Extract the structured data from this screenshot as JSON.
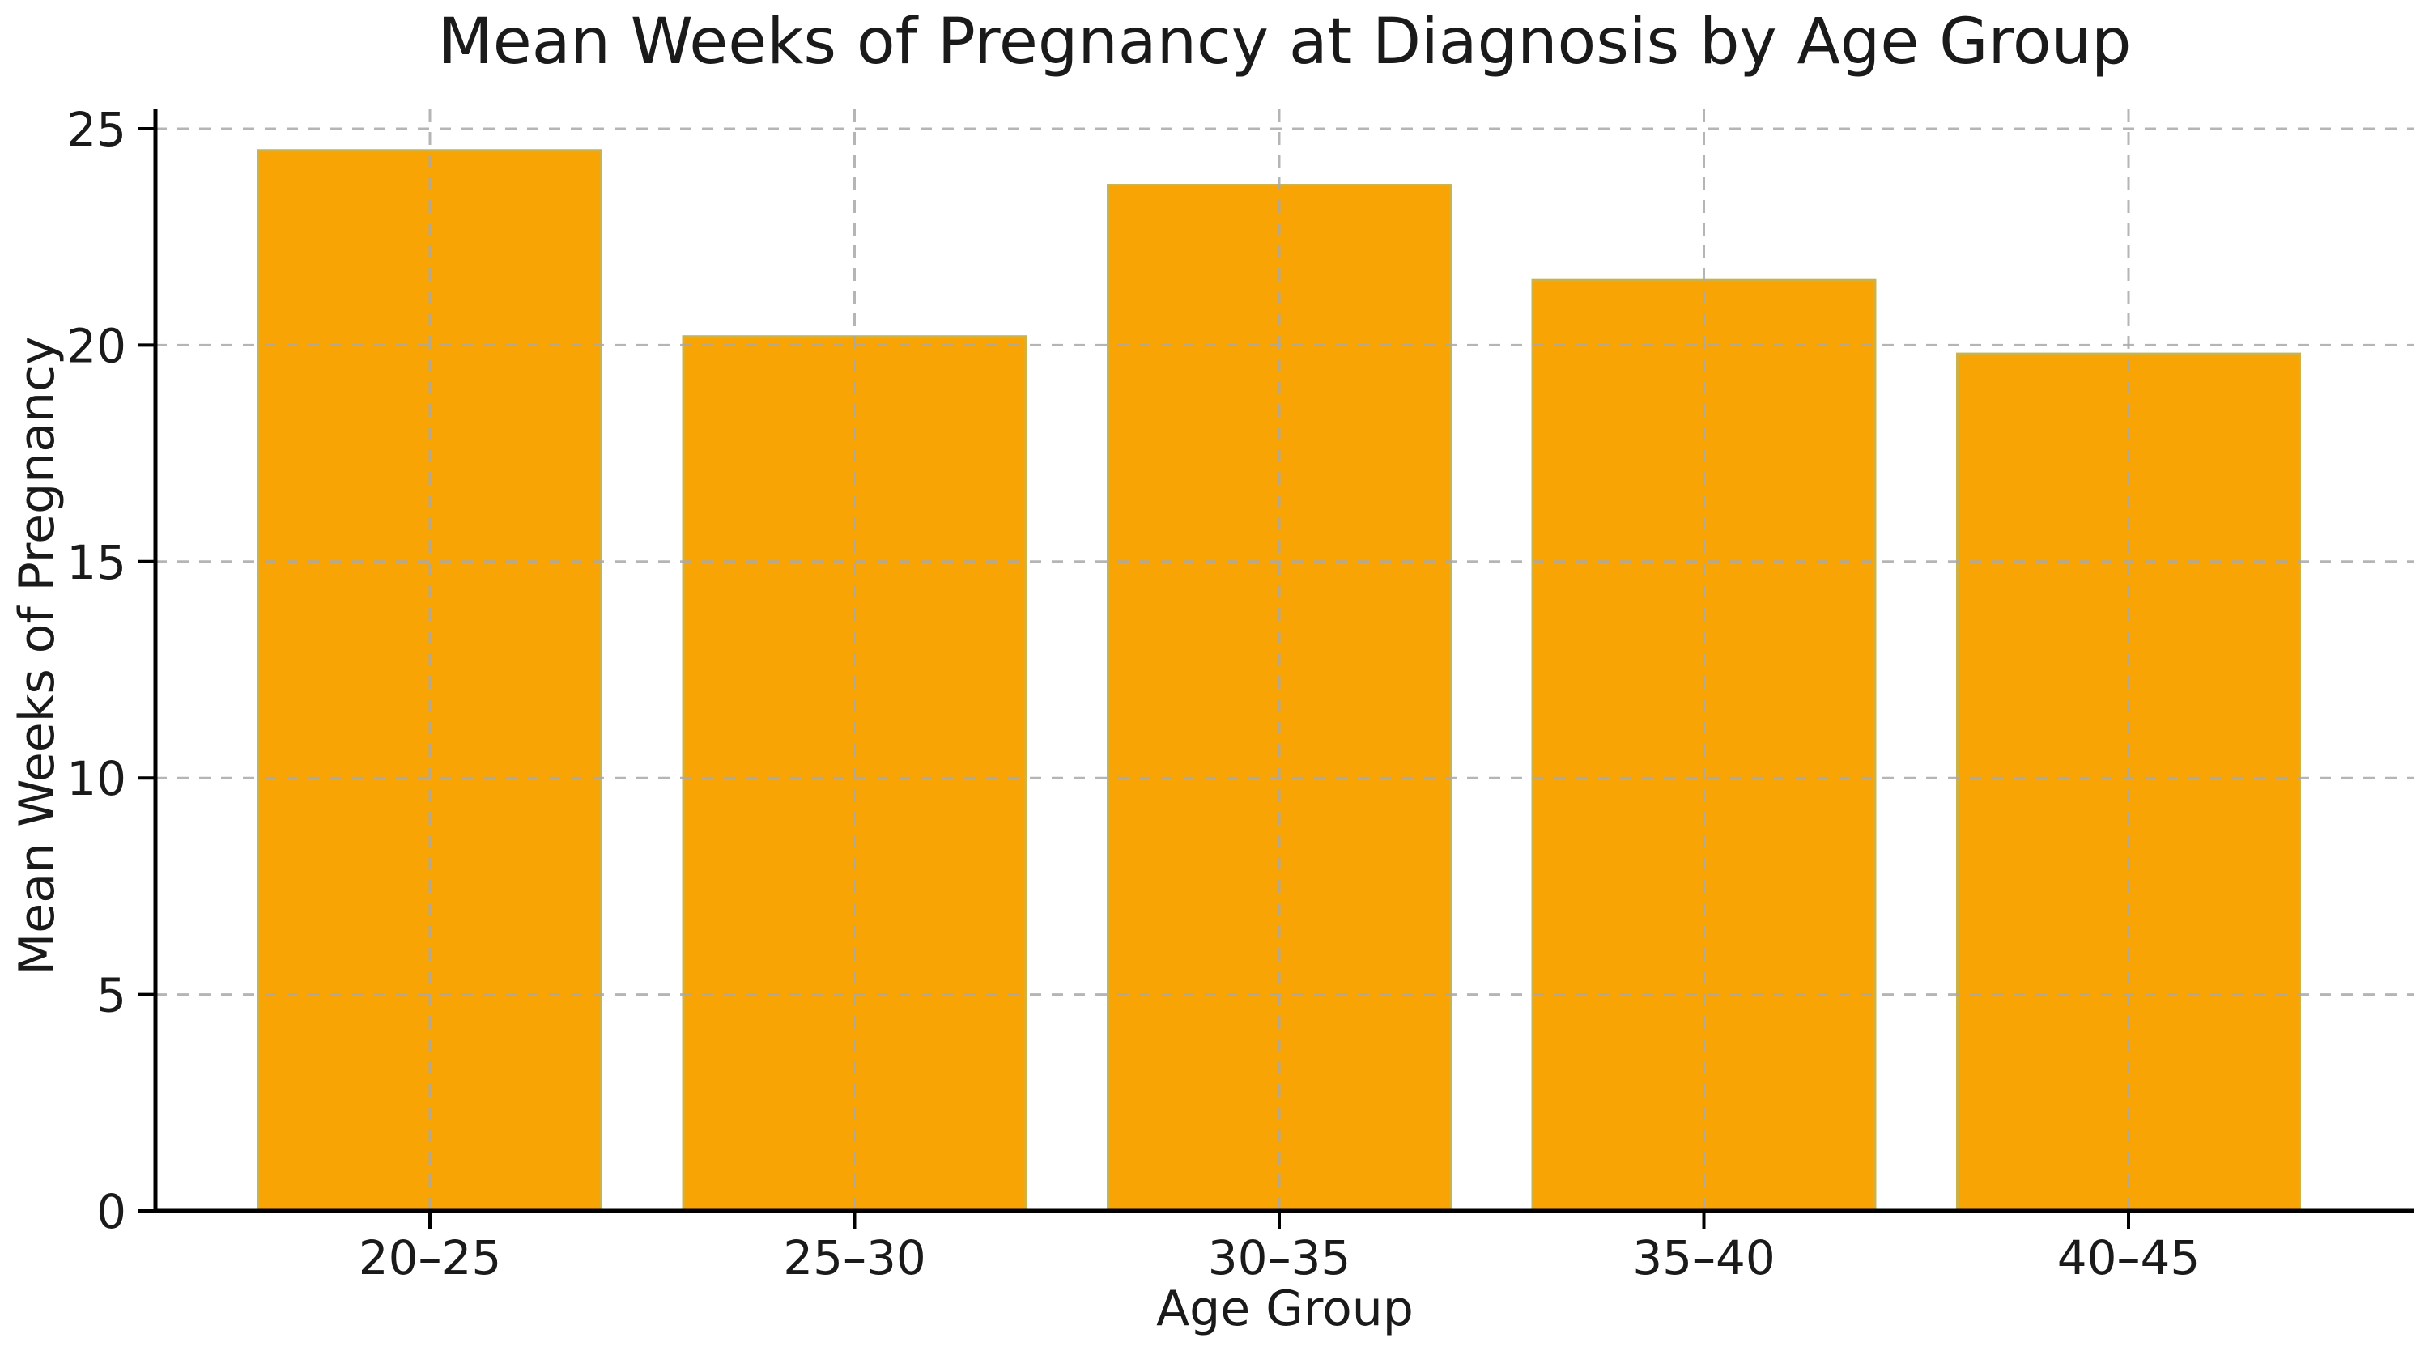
{
  "chart_data": {
    "type": "bar",
    "title": "Mean Weeks of Pregnancy at Diagnosis by Age Group",
    "xlabel": "Age Group",
    "ylabel": "Mean Weeks of Pregnancy",
    "categories": [
      "20–25",
      "25–30",
      "30–35",
      "35–40",
      "40–45"
    ],
    "values": [
      24.5,
      20.2,
      23.7,
      21.5,
      19.8
    ],
    "yticks": [
      0,
      5,
      10,
      15,
      20,
      25
    ],
    "ylim": [
      0,
      25.45
    ],
    "grid": "dashed gridlines on both axes, drawn over bars",
    "legend_position": "none",
    "colors": {
      "bar_fill": "#F9A405",
      "bar_edge": "#CDB347",
      "grid": "#A9A9A9",
      "axis": "#000000",
      "text": "#1a1a1a",
      "background": "#ffffff"
    }
  }
}
